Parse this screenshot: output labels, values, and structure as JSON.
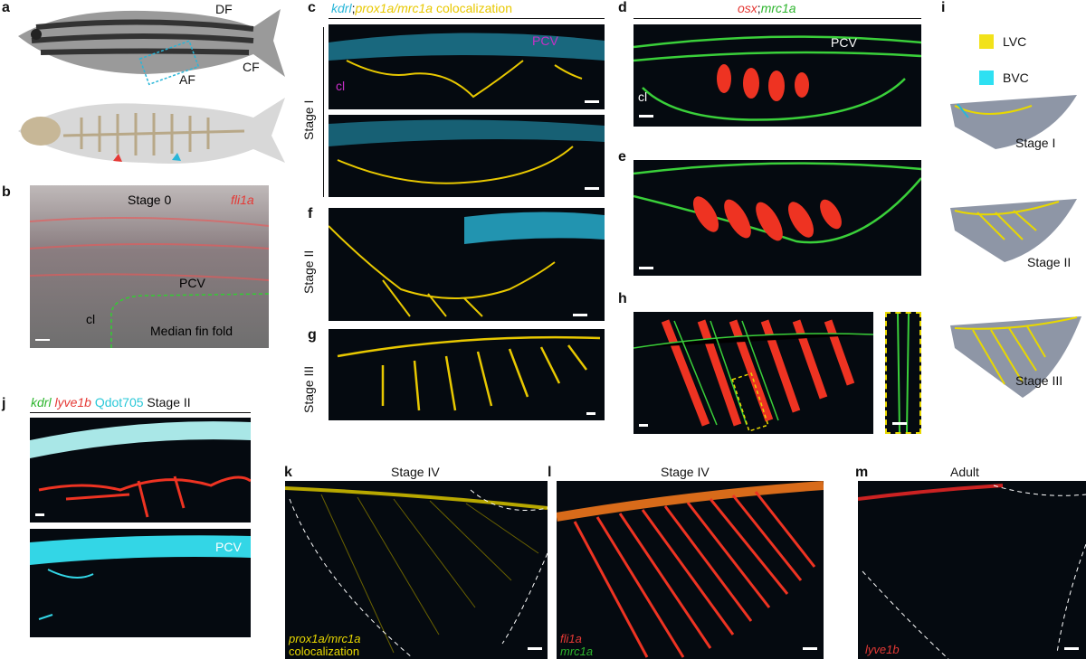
{
  "panels": {
    "a": {
      "letter": "a",
      "dorsal_fin": "DF",
      "caudal_fin": "CF",
      "anal_fin": "AF"
    },
    "b": {
      "letter": "b",
      "stage": "Stage 0",
      "gene": "fli1a",
      "pcv": "PCV",
      "cl": "cl",
      "region": "Median fin fold"
    },
    "c": {
      "letter": "c",
      "header": [
        "kdrl",
        ";",
        "prox1a/mrc1a",
        "colocalization"
      ],
      "stage": "Stage I",
      "pcv": "PCV",
      "cl": "cl"
    },
    "d": {
      "letter": "d",
      "header": [
        "osx",
        ";",
        "mrc1a"
      ],
      "pcv": "PCV",
      "cl": "cl"
    },
    "e": {
      "letter": "e"
    },
    "f": {
      "letter": "f",
      "stage": "Stage II"
    },
    "g": {
      "letter": "g",
      "stage": "Stage III"
    },
    "h": {
      "letter": "h"
    },
    "i": {
      "letter": "i",
      "legend": [
        "LVC",
        "BVC"
      ],
      "stages": [
        "Stage I",
        "Stage II",
        "Stage III"
      ]
    },
    "j": {
      "letter": "j",
      "header": [
        "kdrl",
        "lyve1b",
        "Qdot705",
        "Stage II"
      ],
      "pcv": "PCV"
    },
    "k": {
      "letter": "k",
      "title": "Stage IV",
      "caption": [
        "prox1a/mrc1a",
        "colocalization"
      ]
    },
    "l": {
      "letter": "l",
      "title": "Stage IV",
      "caption": [
        "fli1a",
        "mrc1a"
      ]
    },
    "m": {
      "letter": "m",
      "title": "Adult",
      "caption": [
        "lyve1b"
      ]
    }
  }
}
